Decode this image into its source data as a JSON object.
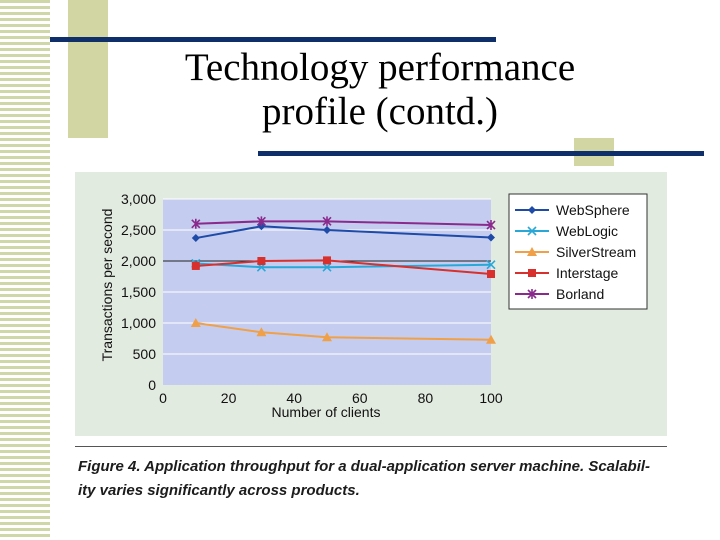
{
  "slide": {
    "title_line1": "Technology performance",
    "title_line2": "profile (contd.)",
    "caption_line1": "Figure 4. Application throughput for a dual-application server machine. Scalabil-",
    "caption_line2": "ity varies significantly across products."
  },
  "colors": {
    "stripe": "#cfd6a8",
    "olive": "#d2d6a2",
    "navy": "#0f2f6b",
    "panel": "#e2ebe0",
    "plot": "#c4cdf0"
  },
  "chart_data": {
    "type": "line",
    "title": "",
    "xlabel": "Number of clients",
    "ylabel": "Transactions per second",
    "xlim": [
      0,
      100
    ],
    "ylim": [
      0,
      3000
    ],
    "x_ticks": [
      0,
      20,
      40,
      60,
      80,
      100
    ],
    "y_ticks": [
      0,
      500,
      1000,
      1500,
      2000,
      2500,
      3000
    ],
    "x_tick_labels": [
      "0",
      "20",
      "40",
      "60",
      "80",
      "100"
    ],
    "y_tick_labels": [
      "0",
      "500",
      "1,000",
      "1,500",
      "2,000",
      "2,500",
      "3,000"
    ],
    "grid": true,
    "legend_position": "top-right",
    "x": [
      10,
      30,
      50,
      100
    ],
    "series": [
      {
        "name": "WebSphere",
        "values": [
          2370,
          2560,
          2500,
          2380
        ],
        "color": "#1e4aa8",
        "marker": "diamond"
      },
      {
        "name": "WebLogic",
        "values": [
          1960,
          1900,
          1900,
          1940
        ],
        "color": "#29a8d8",
        "marker": "x"
      },
      {
        "name": "SilverStream",
        "values": [
          1000,
          850,
          770,
          730
        ],
        "color": "#f0a048",
        "marker": "triangle"
      },
      {
        "name": "Interstage",
        "values": [
          1920,
          2000,
          2010,
          1790
        ],
        "color": "#d8302c",
        "marker": "square"
      },
      {
        "name": "Borland",
        "values": [
          2600,
          2640,
          2640,
          2580
        ],
        "color": "#8a2a8c",
        "marker": "star"
      }
    ]
  }
}
